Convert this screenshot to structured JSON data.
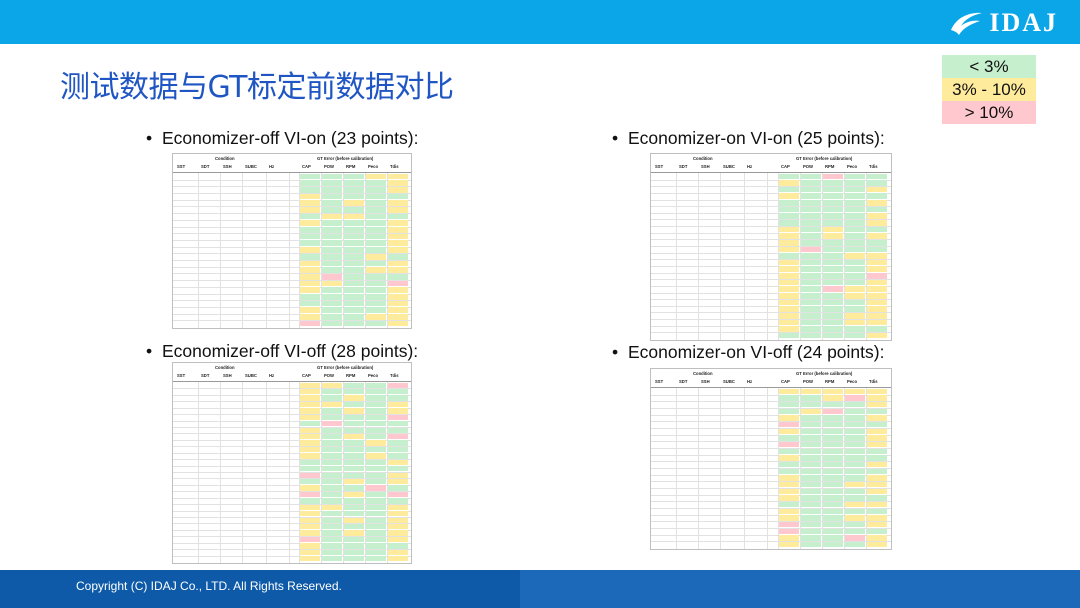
{
  "header": {
    "logo_text": "IDAJ"
  },
  "title": "测试数据与GT标定前数据对比",
  "legend": [
    {
      "label": "< 3%",
      "color": "#c6efce"
    },
    {
      "label": "3% - 10%",
      "color": "#ffeb9c"
    },
    {
      "label": "> 10%",
      "color": "#ffc7ce"
    }
  ],
  "sections": [
    {
      "heading": "Economizer-off  VI-on (23 points):"
    },
    {
      "heading": "Economizer-on  VI-on (25 points):"
    },
    {
      "heading": "Economizer-off  VI-off (28 points):"
    },
    {
      "heading": "Economizer-on  VI-off (24 points):"
    }
  ],
  "table_header": {
    "condition": "Condition",
    "gt_error": "GT Error (before calibration)",
    "cols_left": [
      "SST",
      "SDT",
      "SSH",
      "SUBC",
      "Hz"
    ],
    "cols_right": [
      "CAP",
      "POW",
      "RPM",
      "Peco",
      "Tdis"
    ]
  },
  "footer": {
    "copyright": "Copyright (C)  IDAJ Co., LTD. All Rights Reserved."
  }
}
